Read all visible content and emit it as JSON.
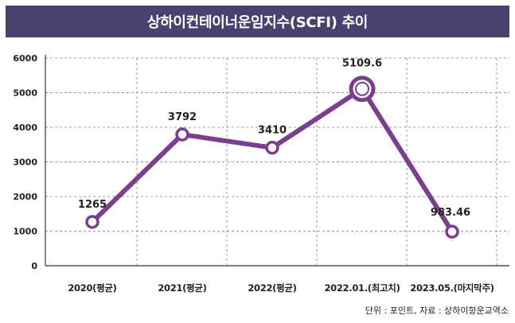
{
  "header": {
    "title": "상하이컨테이너운임지수(SCFI) 추이"
  },
  "footer": {
    "source": "단위 : 포인트, 자료 : 상하이항운교역소"
  },
  "colors": {
    "title_bg": "#4a4170",
    "series": "#7b3f8e",
    "grid": "#999999"
  },
  "chart_data": {
    "type": "line",
    "title": "상하이컨테이너운임지수(SCFI) 추이",
    "categories": [
      "2020(평균)",
      "2021(평균)",
      "2022(평균)",
      "2022.01.(최고치)",
      "2023.05.(마지막주)"
    ],
    "series": [
      {
        "values": [
          1265,
          3792,
          3410,
          5109.6,
          983.46
        ]
      }
    ],
    "data_labels": [
      "1265",
      "3792",
      "3410",
      "5109.6",
      "983.46"
    ],
    "highlight_index": 3,
    "y_ticks": [
      "0",
      "1000",
      "2000",
      "3000",
      "4000",
      "5000",
      "6000"
    ],
    "ylim": [
      0,
      6000
    ],
    "grid": true
  }
}
